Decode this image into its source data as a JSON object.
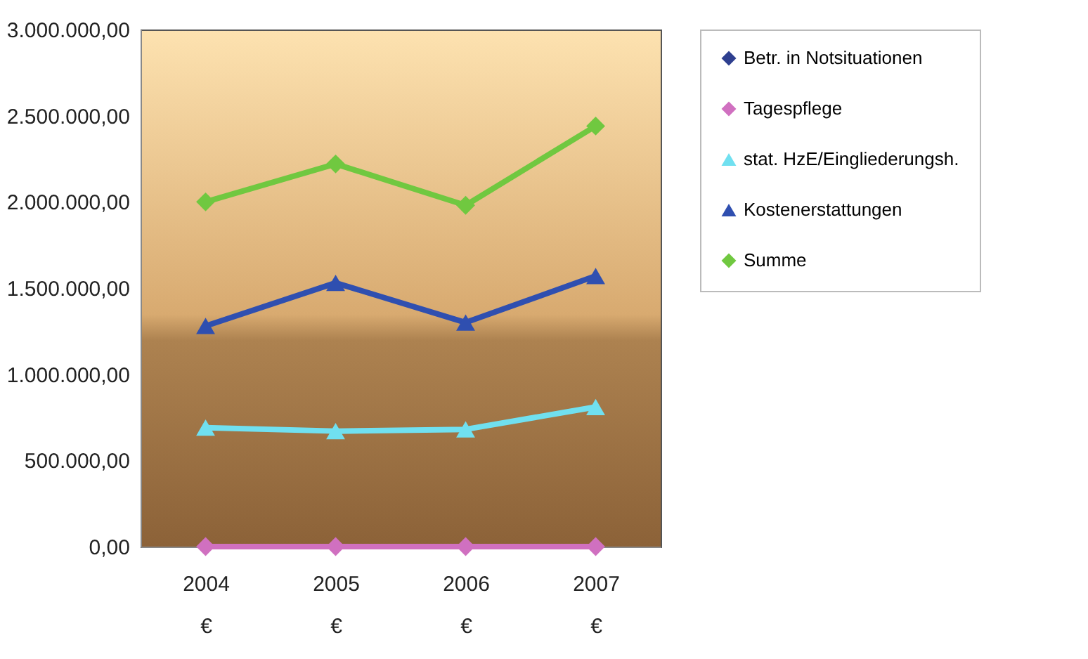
{
  "chart_data": {
    "type": "line",
    "categories": [
      "2004\n€",
      "2005\n€",
      "2006\n€",
      "2007\n€"
    ],
    "series": [
      {
        "name": "Betr. in Notsituationen",
        "color": "#2e3f8f",
        "marker": "diamond",
        "values": [
          null,
          null,
          null,
          null
        ]
      },
      {
        "name": "Tagespflege",
        "color": "#d070c0",
        "marker": "diamond",
        "values": [
          0,
          0,
          0,
          0
        ]
      },
      {
        "name": "stat. HzE/Eingliederungsh.",
        "color": "#70e0f0",
        "marker": "triangle",
        "values": [
          690000,
          670000,
          680000,
          810000
        ]
      },
      {
        "name": "Kostenerstattungen",
        "color": "#2f4fb0",
        "marker": "triangle",
        "values": [
          1280000,
          1530000,
          1300000,
          1570000
        ]
      },
      {
        "name": "Summe",
        "color": "#70c840",
        "marker": "diamond",
        "values": [
          2000000,
          2220000,
          1980000,
          2440000
        ]
      }
    ],
    "ylim": [
      0,
      3000000
    ],
    "yticks": [
      {
        "value": 0,
        "label": "0,00"
      },
      {
        "value": 500000,
        "label": "500.000,00"
      },
      {
        "value": 1000000,
        "label": "1.000.000,00"
      },
      {
        "value": 1500000,
        "label": "1.500.000,00"
      },
      {
        "value": 2000000,
        "label": "2.000.000,00"
      },
      {
        "value": 2500000,
        "label": "2.500.000,00"
      },
      {
        "value": 3000000,
        "label": "3.000.000,00"
      }
    ],
    "grid": false,
    "legend": "right"
  }
}
